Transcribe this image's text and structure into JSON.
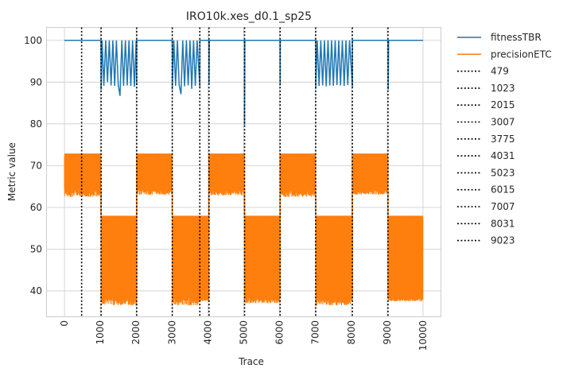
{
  "chart_data": {
    "type": "line",
    "title": "IRO10k.xes_d0.1_sp25",
    "xlabel": "Trace",
    "ylabel": "Metric value",
    "xlim": [
      -500,
      10500
    ],
    "ylim": [
      33.8,
      103.1
    ],
    "x_ticks": [
      0,
      1000,
      2000,
      3000,
      4000,
      5000,
      6000,
      7000,
      8000,
      9000,
      10000
    ],
    "y_ticks": [
      40,
      50,
      60,
      70,
      80,
      90,
      100
    ],
    "grid": true,
    "legend_position": "outside-right",
    "series": [
      {
        "name": "fitnessTBR",
        "color": "#1f77b4",
        "x": [
          0,
          1022,
          1023,
          1050,
          1100,
          1150,
          1200,
          1250,
          1300,
          1350,
          1400,
          1450,
          1500,
          1550,
          1600,
          1650,
          1700,
          1750,
          1800,
          1850,
          1900,
          1950,
          2000,
          2015,
          2016,
          3006,
          3007,
          3050,
          3100,
          3150,
          3200,
          3250,
          3300,
          3350,
          3400,
          3450,
          3500,
          3550,
          3600,
          3650,
          3700,
          3775,
          3776,
          4030,
          4031,
          4040,
          4050,
          5022,
          5023,
          5030,
          5040,
          6014,
          6015,
          6020,
          6030,
          7006,
          7007,
          7050,
          7100,
          7150,
          7200,
          7250,
          7300,
          7350,
          7400,
          7450,
          7500,
          7550,
          7600,
          7650,
          7700,
          7750,
          7800,
          7850,
          7900,
          7950,
          8031,
          8032,
          9022,
          9023,
          9030,
          9040,
          10000
        ],
        "y": [
          100,
          100,
          88.2,
          100,
          89.1,
          100,
          90,
          100,
          89.2,
          100,
          89.1,
          100,
          89.3,
          86.7,
          100,
          89.1,
          100,
          89.2,
          100,
          89.1,
          100,
          88.9,
          100,
          89.3,
          100,
          100,
          88.2,
          100,
          89.1,
          100,
          89.3,
          87.1,
          100,
          89,
          100,
          89.2,
          100,
          88.4,
          100,
          89.1,
          100,
          88.7,
          100,
          100,
          89.6,
          100,
          100,
          100,
          79.7,
          100,
          100,
          100,
          89.2,
          100,
          100,
          100,
          88.4,
          100,
          89.1,
          100,
          89.2,
          100,
          89,
          100,
          89.2,
          100,
          89.1,
          100,
          89.3,
          100,
          89.2,
          100,
          89.1,
          100,
          89.3,
          100,
          88.9,
          100,
          100,
          100,
          88.2,
          100,
          100
        ]
      },
      {
        "name": "precisionETC",
        "color": "#ff7f0e",
        "segments": [
          {
            "x_start": 0,
            "x_end": 1022,
            "upper": 72.9,
            "lower": 64.5,
            "min": 62.5
          },
          {
            "x_start": 1023,
            "x_end": 2015,
            "upper": 58.0,
            "lower": 38.5,
            "min": 36.5
          },
          {
            "x_start": 2016,
            "x_end": 3006,
            "upper": 72.9,
            "lower": 64.5,
            "min": 63.0
          },
          {
            "x_start": 3007,
            "x_end": 3775,
            "upper": 58.0,
            "lower": 38.5,
            "min": 36.5
          },
          {
            "x_start": 3776,
            "x_end": 4030,
            "upper": 58.0,
            "lower": 38.5,
            "min": 37.5
          },
          {
            "x_start": 4031,
            "x_end": 5022,
            "upper": 72.9,
            "lower": 64.5,
            "min": 62.8
          },
          {
            "x_start": 5023,
            "x_end": 6014,
            "upper": 58.0,
            "lower": 38.5,
            "min": 37.0
          },
          {
            "x_start": 6015,
            "x_end": 7006,
            "upper": 72.9,
            "lower": 64.5,
            "min": 62.5
          },
          {
            "x_start": 7007,
            "x_end": 8031,
            "upper": 58.0,
            "lower": 38.5,
            "min": 36.5
          },
          {
            "x_start": 8032,
            "x_end": 9022,
            "upper": 72.9,
            "lower": 64.5,
            "min": 63.0
          },
          {
            "x_start": 9023,
            "x_end": 10000,
            "upper": 58.0,
            "lower": 38.5,
            "min": 37.5
          }
        ]
      }
    ],
    "vlines": [
      {
        "name": "479",
        "x": 479
      },
      {
        "name": "1023",
        "x": 1023
      },
      {
        "name": "2015",
        "x": 2015
      },
      {
        "name": "3007",
        "x": 3007
      },
      {
        "name": "3775",
        "x": 3775
      },
      {
        "name": "4031",
        "x": 4031
      },
      {
        "name": "5023",
        "x": 5023
      },
      {
        "name": "6015",
        "x": 6015
      },
      {
        "name": "7007",
        "x": 7007
      },
      {
        "name": "8031",
        "x": 8031
      },
      {
        "name": "9023",
        "x": 9023
      }
    ]
  }
}
